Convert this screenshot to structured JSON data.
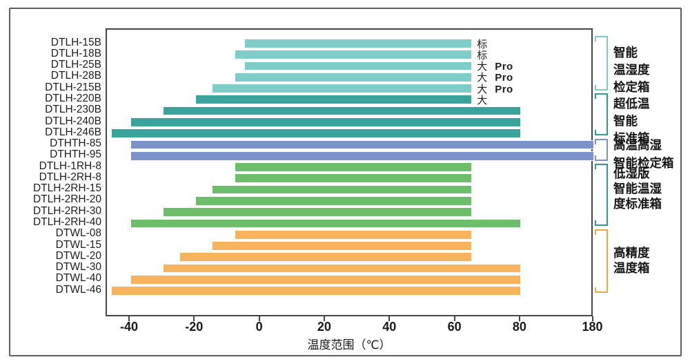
{
  "chart_data": {
    "type": "bar",
    "orientation": "horizontal",
    "title": "",
    "xlabel": "温度范围（℃）",
    "grid": false,
    "axis_note": "x axis evenly spaced ticks; last interval jumps from 80 to 180",
    "x_ticks": [
      {
        "value": -40,
        "label": "-40"
      },
      {
        "value": -20,
        "label": "-20"
      },
      {
        "value": 0,
        "label": "0"
      },
      {
        "value": 20,
        "label": "20"
      },
      {
        "value": 40,
        "label": "40"
      },
      {
        "value": 60,
        "label": "60"
      },
      {
        "value": 80,
        "label": "80"
      },
      {
        "value": 180,
        "label": "180"
      }
    ],
    "bars": [
      {
        "label": "DTLH-15B",
        "min": -5,
        "max": 65,
        "group": "g1",
        "annotation": "标",
        "annotation_bold": ""
      },
      {
        "label": "DTLH-18B",
        "min": -8,
        "max": 65,
        "group": "g1",
        "annotation": "标",
        "annotation_bold": ""
      },
      {
        "label": "DTLH-25B",
        "min": -5,
        "max": 65,
        "group": "g1",
        "annotation": "大",
        "annotation_bold": "Pro"
      },
      {
        "label": "DTLH-28B",
        "min": -8,
        "max": 65,
        "group": "g1",
        "annotation": "大",
        "annotation_bold": "Pro"
      },
      {
        "label": "DTLH-215B",
        "min": -15,
        "max": 65,
        "group": "g1",
        "annotation": "大",
        "annotation_bold": "Pro"
      },
      {
        "label": "DTLH-220B",
        "min": -20,
        "max": 65,
        "group": "g2",
        "annotation": "大",
        "annotation_bold": ""
      },
      {
        "label": "DTLH-230B",
        "min": -30,
        "max": 80,
        "group": "g2",
        "annotation": "",
        "annotation_bold": ""
      },
      {
        "label": "DTLH-240B",
        "min": -40,
        "max": 80,
        "group": "g2",
        "annotation": "",
        "annotation_bold": ""
      },
      {
        "label": "DTLH-246B",
        "min": -46,
        "max": 80,
        "group": "g2",
        "annotation": "",
        "annotation_bold": ""
      },
      {
        "label": "DTHTH-85",
        "min": -40,
        "max": 180,
        "group": "g3",
        "annotation": "",
        "annotation_bold": ""
      },
      {
        "label": "DTHTH-95",
        "min": -40,
        "max": 180,
        "group": "g3",
        "annotation": "",
        "annotation_bold": ""
      },
      {
        "label": "DTLH-1RH-8",
        "min": -8,
        "max": 65,
        "group": "g4",
        "annotation": "",
        "annotation_bold": ""
      },
      {
        "label": "DTLH-2RH-8",
        "min": -8,
        "max": 65,
        "group": "g4",
        "annotation": "",
        "annotation_bold": ""
      },
      {
        "label": "DTLH-2RH-15",
        "min": -15,
        "max": 65,
        "group": "g4",
        "annotation": "",
        "annotation_bold": ""
      },
      {
        "label": "DTLH-2RH-20",
        "min": -20,
        "max": 65,
        "group": "g4",
        "annotation": "",
        "annotation_bold": ""
      },
      {
        "label": "DTLH-2RH-30",
        "min": -30,
        "max": 65,
        "group": "g4",
        "annotation": "",
        "annotation_bold": ""
      },
      {
        "label": "DTLH-2RH-40",
        "min": -40,
        "max": 80,
        "group": "g4",
        "annotation": "",
        "annotation_bold": ""
      },
      {
        "label": "DTWL-08",
        "min": -8,
        "max": 65,
        "group": "g5",
        "annotation": "",
        "annotation_bold": ""
      },
      {
        "label": "DTWL-15",
        "min": -15,
        "max": 65,
        "group": "g5",
        "annotation": "",
        "annotation_bold": ""
      },
      {
        "label": "DTWL-20",
        "min": -25,
        "max": 65,
        "group": "g5",
        "annotation": "",
        "annotation_bold": ""
      },
      {
        "label": "DTWL-30",
        "min": -30,
        "max": 80,
        "group": "g5",
        "annotation": "",
        "annotation_bold": ""
      },
      {
        "label": "DTWL-40",
        "min": -40,
        "max": 80,
        "group": "g5",
        "annotation": "",
        "annotation_bold": ""
      },
      {
        "label": "DTWL-46",
        "min": -46,
        "max": 80,
        "group": "g5",
        "annotation": "",
        "annotation_bold": ""
      }
    ],
    "groups": [
      {
        "id": "g1",
        "name": "智能温湿度检定箱",
        "lines": [
          "智能",
          "温湿度",
          "检定箱"
        ],
        "bar_color": "#7ECDC8",
        "bracket_color": "#7ECDC8"
      },
      {
        "id": "g2",
        "name": "超低温智能标准箱",
        "lines": [
          "超低温",
          "智能",
          "标准箱"
        ],
        "bar_color": "#3AA39C",
        "bracket_color": "#2E9B95"
      },
      {
        "id": "g3",
        "name": "高温高湿智能检定箱",
        "lines": [
          "高温高湿",
          "智能检定箱"
        ],
        "bar_color": "#7B92CA",
        "bracket_color": "#7B92CA"
      },
      {
        "id": "g4",
        "name": "低湿版智能温湿度标准箱",
        "lines": [
          "低湿版",
          "智能温湿",
          "度标准箱"
        ],
        "bar_color": "#6CBE6B",
        "bracket_color": "#2E9B95"
      },
      {
        "id": "g5",
        "name": "高精度温度箱",
        "lines": [
          "高精度",
          "温度箱"
        ],
        "bar_color": "#F8B45C",
        "bracket_color": "#F5A83C"
      }
    ],
    "colors": {
      "plot_border": "#454545",
      "outer_border": "#5f5f5f",
      "text": "#1a1a1a"
    }
  }
}
